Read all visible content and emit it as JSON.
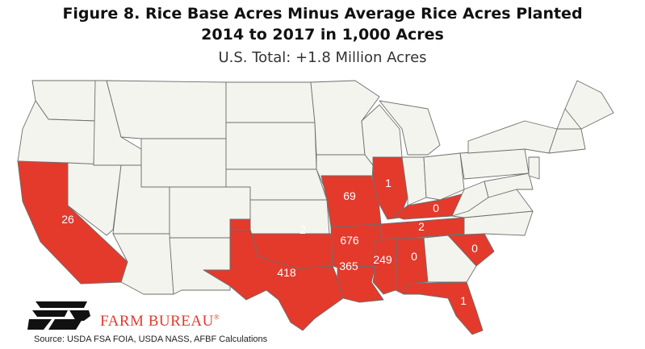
{
  "title_line1": "Figure 8. Rice Base Acres Minus Average Rice Acres Planted",
  "title_line2": "2014 to 2017 in 1,000 Acres",
  "subtitle": "U.S. Total: +1.8 Million Acres",
  "highlight_color": "#e33a2c",
  "base_color": "#f4f4ee",
  "states": [
    {
      "name": "California",
      "value": "26"
    },
    {
      "name": "Texas",
      "value": "418"
    },
    {
      "name": "Oklahoma",
      "value": "2"
    },
    {
      "name": "Missouri",
      "value": "69"
    },
    {
      "name": "Illinois",
      "value": "1"
    },
    {
      "name": "Kentucky",
      "value": "0"
    },
    {
      "name": "Tennessee",
      "value": "2"
    },
    {
      "name": "Arkansas",
      "value": "676"
    },
    {
      "name": "Louisiana",
      "value": "365"
    },
    {
      "name": "Mississippi",
      "value": "249"
    },
    {
      "name": "Alabama",
      "value": "0"
    },
    {
      "name": "South Carolina",
      "value": "0"
    },
    {
      "name": "Florida",
      "value": "1"
    }
  ],
  "logo": {
    "text": "FARM BUREAU",
    "mark": "®"
  },
  "source": "Source: USDA FSA FOIA, USDA NASS, AFBF Calculations"
}
